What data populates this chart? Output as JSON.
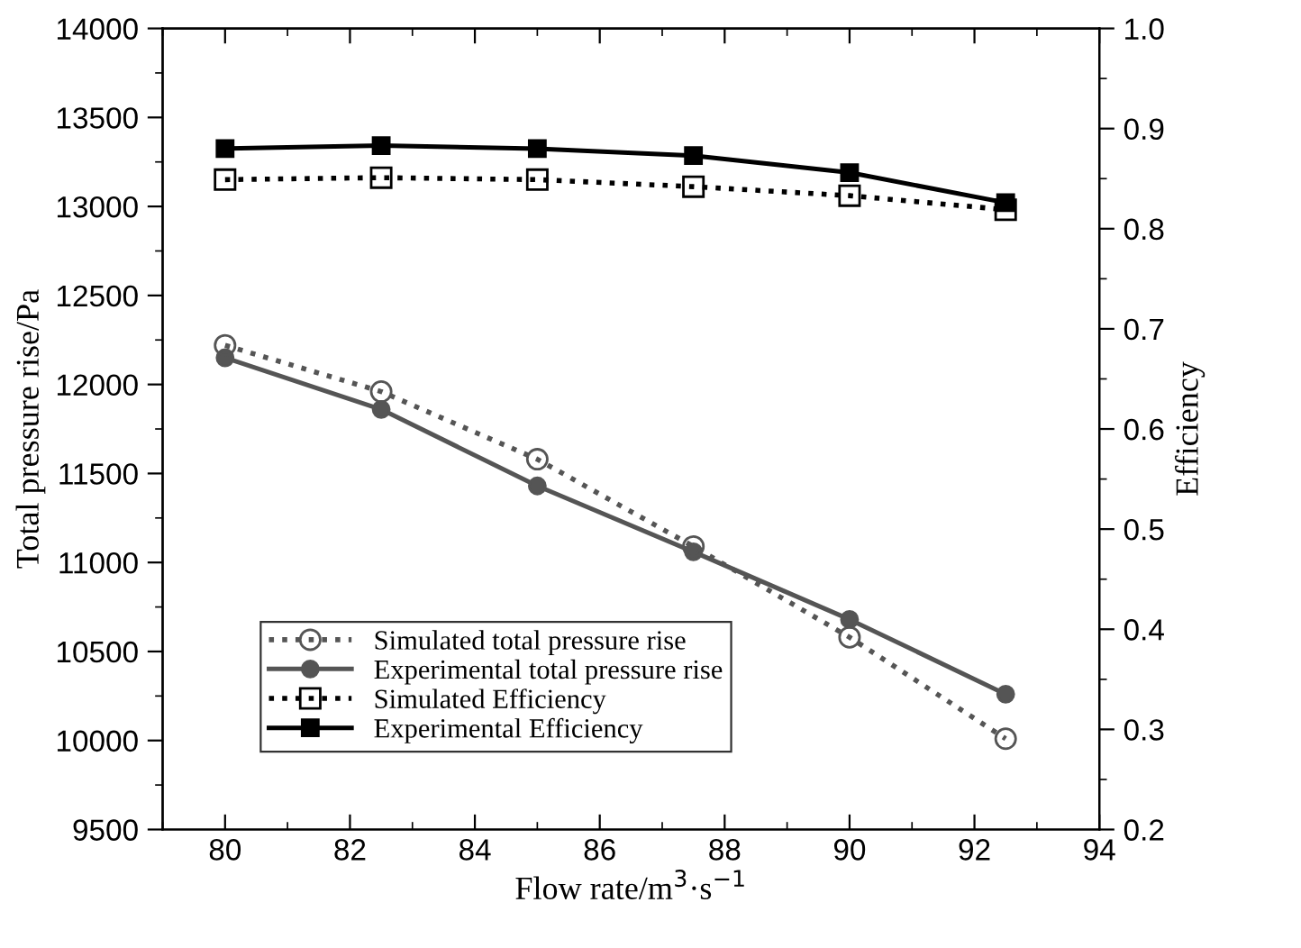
{
  "chart_data": {
    "type": "line",
    "xlabel": "Flow rate/m$^{3}$·s$^{−1}$",
    "ylabel": "Total pressure rise/Pa",
    "y2label": "Efficiency",
    "x": [
      80,
      82.5,
      85,
      87.5,
      90,
      92.5
    ],
    "series": [
      {
        "name": "Simulated total pressure rise",
        "color": "#555555",
        "marker": "circle",
        "line_style": "dotted",
        "values": [
          12220,
          11960,
          11580,
          11090,
          10580,
          10010
        ]
      },
      {
        "name": "Experimental total pressure rise",
        "color": "#555555",
        "marker": "circle",
        "line_style": "solid",
        "values": [
          12150,
          11860,
          11430,
          11060,
          10680,
          10260
        ]
      },
      {
        "name": "Simulated Efficiency",
        "color": "#000000",
        "marker": "square",
        "line_style": "dotted",
        "axis": "y2",
        "values": [
          0.849,
          0.851,
          0.849,
          0.842,
          0.833,
          0.819
        ]
      },
      {
        "name": "Experimental Efficiency",
        "color": "#000000",
        "marker": "square",
        "line_style": "solid",
        "axis": "y2",
        "values": [
          0.88,
          0.883,
          0.88,
          0.873,
          0.856,
          0.826
        ]
      }
    ],
    "xlim": [
      79,
      94
    ],
    "xticks": [
      80,
      82,
      84,
      86,
      88,
      90,
      92,
      94
    ],
    "ylim": [
      9500,
      14000
    ],
    "yticks": [
      9500,
      10000,
      10500,
      11000,
      11500,
      12000,
      12500,
      13000,
      13500,
      14000
    ],
    "y2lim": [
      0.2,
      1.0
    ],
    "y2ticks": [
      {
        "value": 0.2,
        "label": "0.2"
      },
      {
        "value": 0.3,
        "label": "0.3"
      },
      {
        "value": 0.4,
        "label": "0.4"
      },
      {
        "value": 0.5,
        "label": "0.5"
      },
      {
        "value": 0.6,
        "label": "0.6"
      },
      {
        "value": 0.7,
        "label": "0.7"
      },
      {
        "value": 0.8,
        "label": "0.8"
      },
      {
        "value": 0.9,
        "label": "0.9"
      },
      {
        "value": 1.0,
        "label": "1.0"
      }
    ],
    "grid": false,
    "legend": "bottom left"
  }
}
